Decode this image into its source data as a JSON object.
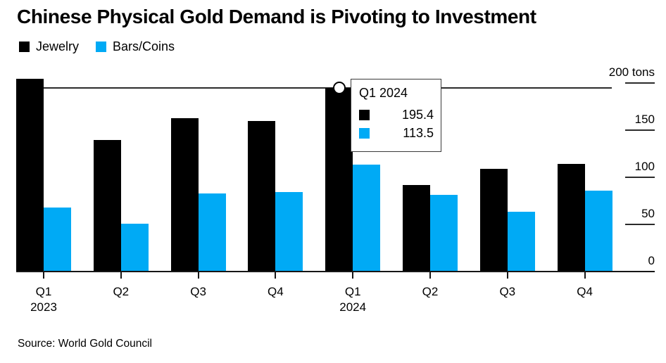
{
  "title": "Chinese Physical Gold Demand is Pivoting to Investment",
  "source": "Source: World Gold Council",
  "colors": {
    "jewelry": "#000000",
    "bars_coins": "#00aaf5",
    "axis": "#161616",
    "background": "#ffffff"
  },
  "legend": {
    "items": [
      {
        "label": "Jewelry",
        "color": "#000000"
      },
      {
        "label": "Bars/Coins",
        "color": "#00aaf5"
      }
    ]
  },
  "tooltip": {
    "title": "Q1 2024",
    "rows": [
      {
        "series": "Jewelry",
        "swatch": "#000000",
        "value": "195.4"
      },
      {
        "series": "Bars/Coins",
        "swatch": "#00aaf5",
        "value": "113.5"
      }
    ]
  },
  "chart_data": {
    "type": "bar",
    "title": "Chinese Physical Gold Demand is Pivoting to Investment",
    "unit": "tons",
    "categories": [
      "Q1 2023",
      "Q2 2023",
      "Q3 2023",
      "Q4 2023",
      "Q1 2024",
      "Q2 2024",
      "Q3 2024",
      "Q4 2024"
    ],
    "x_ticks": [
      {
        "q": "Q1",
        "year": "2023"
      },
      {
        "q": "Q2"
      },
      {
        "q": "Q3"
      },
      {
        "q": "Q4"
      },
      {
        "q": "Q1",
        "year": "2024"
      },
      {
        "q": "Q2"
      },
      {
        "q": "Q3"
      },
      {
        "q": "Q4"
      }
    ],
    "series": [
      {
        "name": "Jewelry",
        "color": "#000000",
        "values": [
          204.8,
          139.6,
          162.8,
          159.8,
          195.4,
          91.7,
          108.9,
          114.2
        ]
      },
      {
        "name": "Bars/Coins",
        "color": "#00aaf5",
        "values": [
          67.8,
          50.5,
          82.7,
          84.2,
          113.5,
          81.2,
          63.3,
          85.7
        ]
      }
    ],
    "y_axis": {
      "range": [
        0,
        200
      ],
      "ticks": [
        {
          "label": "200 tons",
          "value": 200
        },
        {
          "label": "150",
          "value": 150
        },
        {
          "label": "100",
          "value": 100
        },
        {
          "label": "50",
          "value": 50
        },
        {
          "label": "0",
          "value": 0
        }
      ]
    },
    "hover": {
      "category": "Q1 2024",
      "category_index": 4,
      "series": "Jewelry",
      "value": 195.4
    },
    "legend_position": "top-left",
    "grid": "off"
  }
}
